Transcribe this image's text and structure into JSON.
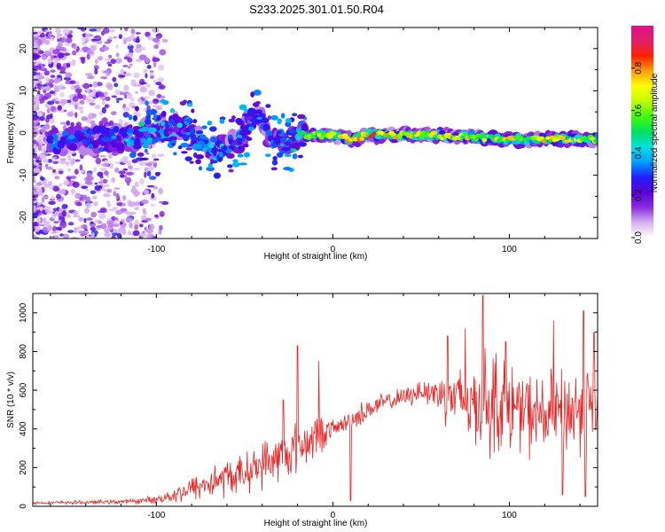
{
  "title": "S233.2025.301.01.50.R04",
  "colors": {
    "snr_line": "#ee2222",
    "axis": "#000000",
    "background": "#ffffff"
  },
  "chart_data": [
    {
      "type": "heatmap",
      "name": "spectrogram",
      "xlabel": "Height of straight line (km)",
      "ylabel": "Frequency (Hz)",
      "xlim": [
        -170,
        150
      ],
      "ylim": [
        -25,
        25
      ],
      "xticks": [
        -100,
        0,
        100
      ],
      "xtick_labels": [
        "-100",
        "0",
        "100"
      ],
      "yticks": [
        -20,
        -10,
        0,
        10,
        20
      ],
      "ytick_labels": [
        "-20",
        "-10",
        "0",
        "10",
        "20"
      ],
      "colorbar": {
        "label": "Normalized spectral amplitude",
        "range": [
          0,
          1
        ],
        "ticks": [
          0.0,
          0.2,
          0.4,
          0.6,
          0.8
        ],
        "tick_labels": [
          "0.0",
          "0.2",
          "0.4",
          "0.6",
          "0.8"
        ],
        "colormap": [
          "#ffffff",
          "#d6b0f0",
          "#8a2be2",
          "#5a00d8",
          "#2020ff",
          "#00a0ff",
          "#00e0e0",
          "#00e060",
          "#40ff00",
          "#c0ff00",
          "#ffff00",
          "#ffa000",
          "#ff2000",
          "#e0206a",
          "#e0108a"
        ]
      },
      "ridge": {
        "description_points": [
          {
            "x": -150,
            "y": -2.0,
            "amp": 0.35
          },
          {
            "x": -130,
            "y": -1.5,
            "amp": 0.3
          },
          {
            "x": -115,
            "y": -1.0,
            "amp": 0.45
          },
          {
            "x": -100,
            "y": 1.0,
            "amp": 0.5
          },
          {
            "x": -85,
            "y": 2.0,
            "amp": 0.45
          },
          {
            "x": -70,
            "y": -4.0,
            "amp": 0.45
          },
          {
            "x": -55,
            "y": -3.0,
            "amp": 0.4
          },
          {
            "x": -42,
            "y": 5.5,
            "amp": 0.3
          },
          {
            "x": -35,
            "y": -1.5,
            "amp": 0.35
          },
          {
            "x": -25,
            "y": -2.0,
            "amp": 0.45
          },
          {
            "x": -15,
            "y": -1.0,
            "amp": 0.6
          },
          {
            "x": -10,
            "y": -0.5,
            "amp": 0.7
          },
          {
            "x": 0,
            "y": -0.5,
            "amp": 0.75
          },
          {
            "x": 10,
            "y": -1.5,
            "amp": 0.8
          },
          {
            "x": 20,
            "y": -0.5,
            "amp": 0.9
          },
          {
            "x": 40,
            "y": -0.5,
            "amp": 0.75
          },
          {
            "x": 60,
            "y": -0.5,
            "amp": 0.7
          },
          {
            "x": 80,
            "y": -1.0,
            "amp": 0.75
          },
          {
            "x": 100,
            "y": -1.5,
            "amp": 0.8
          },
          {
            "x": 120,
            "y": -1.5,
            "amp": 0.75
          },
          {
            "x": 140,
            "y": -1.5,
            "amp": 0.7
          }
        ]
      }
    },
    {
      "type": "line",
      "name": "snr",
      "xlabel": "Height of straight line (km)",
      "ylabel": "SNR (10 * v/v)",
      "xlim": [
        -170,
        150
      ],
      "ylim": [
        0,
        1100
      ],
      "xticks": [
        -100,
        0,
        100
      ],
      "xtick_labels": [
        "-100",
        "0",
        "100"
      ],
      "yticks": [
        0,
        200,
        400,
        600,
        800,
        1000
      ],
      "ytick_labels": [
        "0",
        "200",
        "400",
        "600",
        "800",
        "1000"
      ],
      "envelope": {
        "x": [
          -170,
          -140,
          -115,
          -100,
          -90,
          -80,
          -70,
          -60,
          -50,
          -40,
          -30,
          -20,
          -15,
          -10,
          -5,
          0,
          5,
          10,
          20,
          30,
          40,
          50,
          60,
          70,
          80,
          90,
          100,
          110,
          120,
          130,
          140,
          150
        ],
        "mean": [
          18,
          20,
          25,
          35,
          60,
          90,
          120,
          150,
          170,
          220,
          250,
          300,
          330,
          360,
          380,
          400,
          420,
          440,
          500,
          540,
          560,
          600,
          580,
          560,
          520,
          550,
          520,
          480,
          460,
          480,
          500,
          520
        ],
        "spread": [
          10,
          12,
          15,
          25,
          50,
          80,
          110,
          120,
          120,
          150,
          160,
          170,
          150,
          150,
          100,
          60,
          50,
          80,
          70,
          60,
          60,
          80,
          150,
          200,
          280,
          350,
          280,
          260,
          260,
          280,
          300,
          250
        ]
      },
      "peaks": [
        {
          "x": -28,
          "y": 550
        },
        {
          "x": -20,
          "y": 830
        },
        {
          "x": -8,
          "y": 750
        },
        {
          "x": 50,
          "y": 590
        },
        {
          "x": 65,
          "y": 880
        },
        {
          "x": 75,
          "y": 920
        },
        {
          "x": 85,
          "y": 1090
        },
        {
          "x": 98,
          "y": 850
        },
        {
          "x": 125,
          "y": 960
        },
        {
          "x": 142,
          "y": 1010
        },
        {
          "x": 148,
          "y": 900
        }
      ],
      "dips": [
        {
          "x": 10,
          "y": 30
        },
        {
          "x": 130,
          "y": 60
        },
        {
          "x": 143,
          "y": 50
        }
      ]
    }
  ]
}
